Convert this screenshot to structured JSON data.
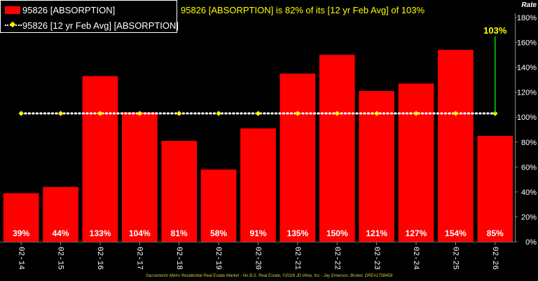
{
  "legend": {
    "bar_label": "95826 [ABSORPTION]",
    "avg_label": "95826 [12 yr Feb Avg] [ABSORPTION]"
  },
  "headline": "95826 [ABSORPTION] is 82% of its [12 yr Feb Avg] of 103%",
  "footer": "Sacramento Metro Residential Real Estate Market - No B.S. Real Estate, ©2026 JD Wise, Inc - Jay Emerson, Broker, DRE#1708458",
  "colors": {
    "bar": "#ff0000",
    "avg_line": "#ffffff",
    "avg_marker": "#ffff00",
    "callout_line": "#00dd00",
    "callout_text": "#ffff00",
    "axis_text": "#ffffff",
    "background": "#000000"
  },
  "chart_data": {
    "type": "bar",
    "categories": [
      "02-14",
      "02-15",
      "02-16",
      "02-17",
      "02-18",
      "02-19",
      "02-20",
      "02-21",
      "02-22",
      "02-23",
      "02-24",
      "02-25",
      "02-26"
    ],
    "series": [
      {
        "name": "95826 [ABSORPTION]",
        "values": [
          39,
          44,
          133,
          104,
          81,
          58,
          91,
          135,
          150,
          121,
          127,
          154,
          85
        ]
      },
      {
        "name": "95826 [12 yr Feb Avg] [ABSORPTION]",
        "type": "line",
        "values": [
          103,
          103,
          103,
          103,
          103,
          103,
          103,
          103,
          103,
          103,
          103,
          103,
          103
        ]
      }
    ],
    "data_labels": [
      "39%",
      "44%",
      "133%",
      "104%",
      "81%",
      "58%",
      "91%",
      "135%",
      "150%",
      "121%",
      "127%",
      "154%",
      "85%"
    ],
    "callout": {
      "category": "02-26",
      "from": 85,
      "to": 103,
      "label": "103%"
    },
    "ylabel": "Rate",
    "ylim": [
      0,
      180
    ],
    "yticks": [
      0,
      20,
      40,
      60,
      80,
      100,
      120,
      140,
      160,
      180
    ],
    "ytick_labels": [
      "0%",
      "20%",
      "40%",
      "60%",
      "80%",
      "100%",
      "120%",
      "140%",
      "160%",
      "180%"
    ],
    "y_axis_side": "right",
    "grid": false,
    "legend_position": "top-left"
  }
}
